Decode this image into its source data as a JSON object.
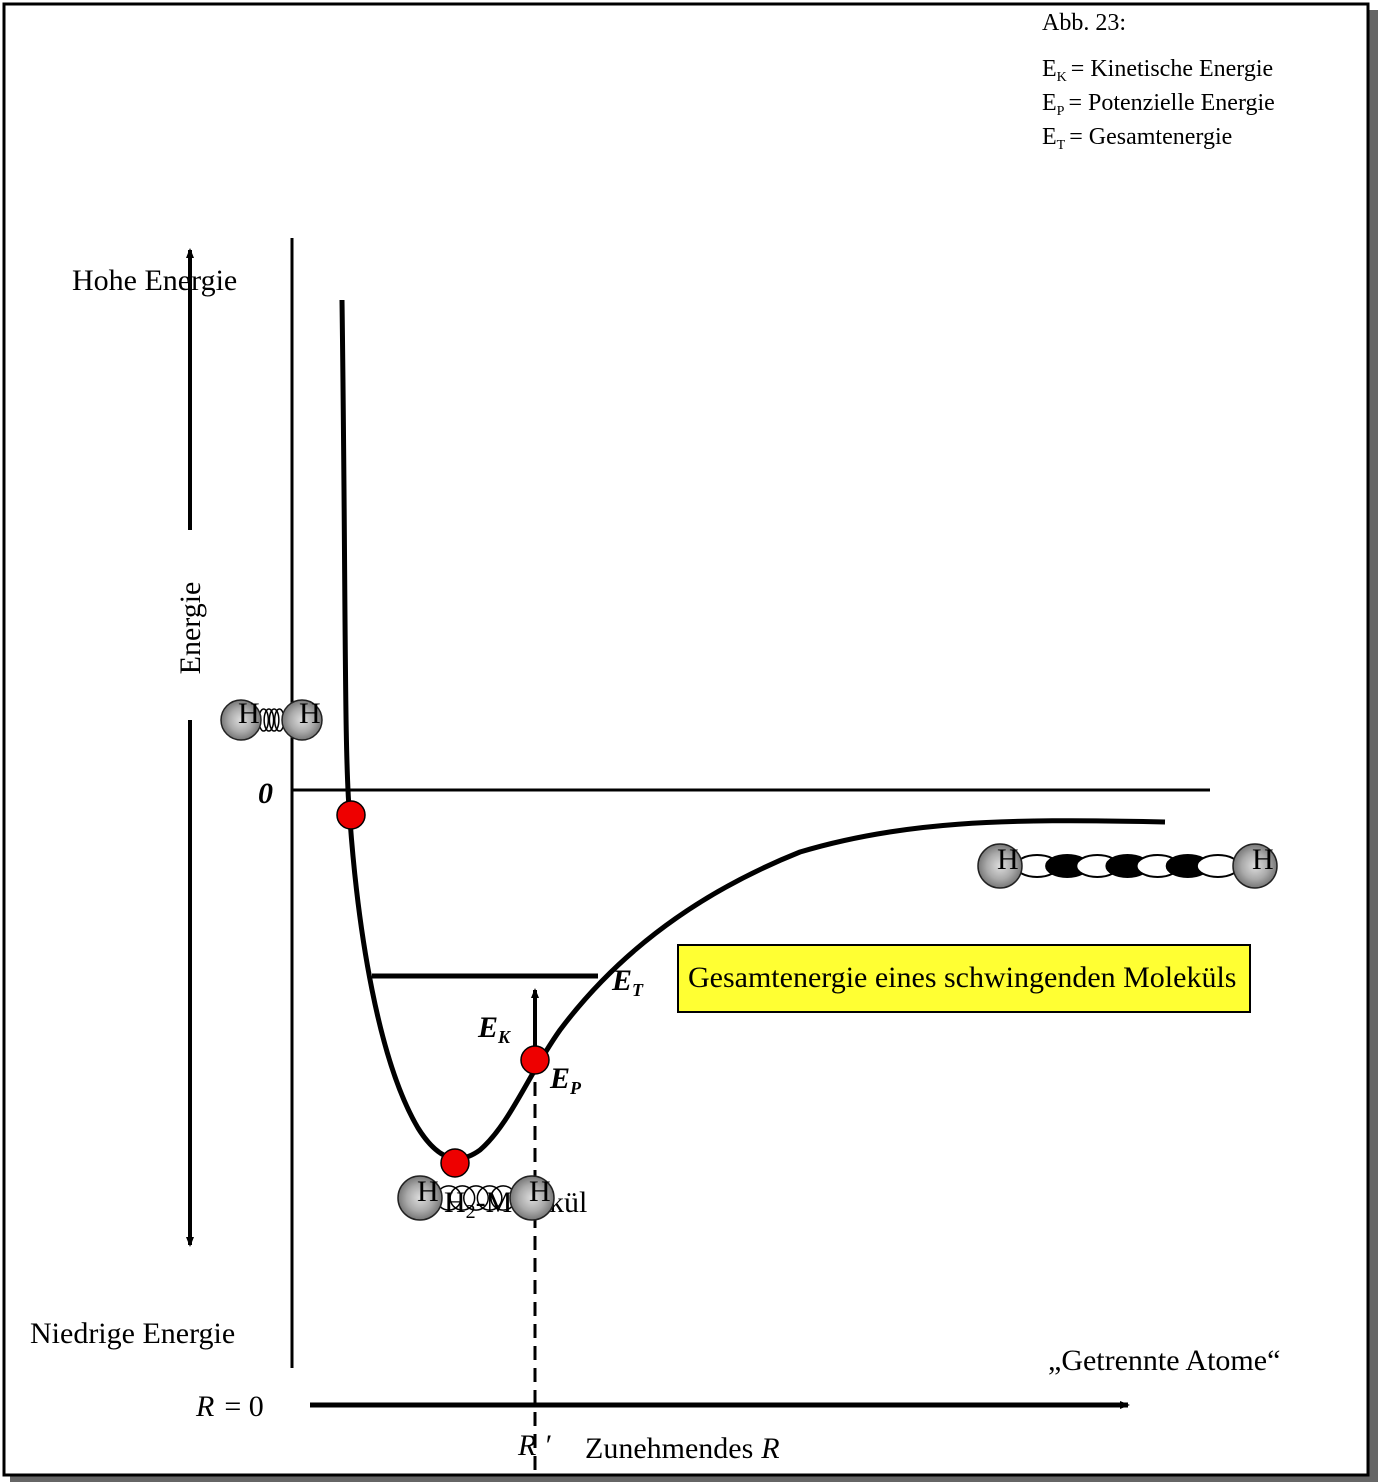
{
  "caption": {
    "figure": "Abb. 23:",
    "legend": [
      {
        "symbol": "E",
        "sub": "K",
        "text": "= Kinetische Energie"
      },
      {
        "symbol": "E",
        "sub": "P",
        "text": "= Potenzielle Energie"
      },
      {
        "symbol": "E",
        "sub": "T",
        "text": "= Gesamtenergie"
      }
    ]
  },
  "axis": {
    "high": "Hohe Energie",
    "low": "Niedrige Energie",
    "energy": "Energie",
    "zero": "0",
    "separated": "„Getrennte Atome“",
    "r_zero": {
      "symbol": "R",
      "text": "= 0"
    },
    "r_prime": "R ′",
    "increasing": {
      "text": "Zunehmendes",
      "symbol": "R"
    }
  },
  "labels": {
    "et": {
      "symbol": "E",
      "sub": "T"
    },
    "ek": {
      "symbol": "E",
      "sub": "K"
    },
    "ep": {
      "symbol": "E",
      "sub": "P"
    },
    "molecule": {
      "symbol": "H",
      "sub": "2",
      "text": "-Molekül"
    },
    "callout": "Gesamtenergie eines schwingenden Moleküls",
    "atom": "H"
  }
}
